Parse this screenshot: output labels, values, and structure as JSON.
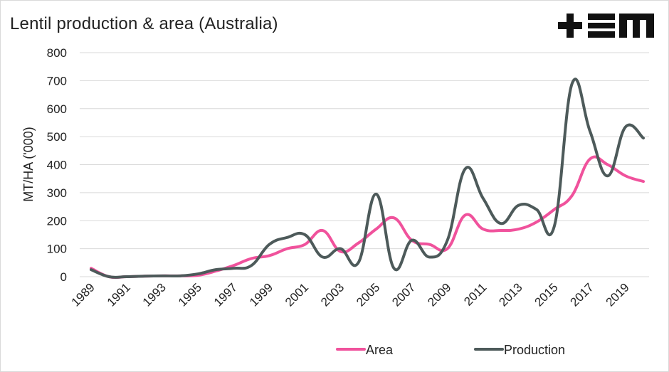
{
  "chart_data": {
    "type": "line",
    "title": "Lentil production & area (Australia)",
    "ylabel": "MT/HA ('000)",
    "xlabel": "",
    "ylim": [
      0,
      800
    ],
    "yticks": [
      "0",
      "100",
      "200",
      "300",
      "400",
      "500",
      "600",
      "700",
      "800"
    ],
    "x_tick_labels": [
      "1989",
      "1991",
      "1993",
      "1995",
      "1997",
      "1999",
      "2001",
      "2003",
      "2005",
      "2007",
      "2009",
      "2011",
      "2013",
      "2015",
      "2017",
      "2019"
    ],
    "x": [
      1989,
      1990,
      1991,
      1992,
      1993,
      1994,
      1995,
      1996,
      1997,
      1998,
      1999,
      2000,
      2001,
      2002,
      2003,
      2004,
      2005,
      2006,
      2007,
      2008,
      2009,
      2010,
      2011,
      2012,
      2013,
      2014,
      2015,
      2016,
      2017,
      2018,
      2019,
      2020
    ],
    "grid": "horizontal",
    "legend_position": "bottom",
    "series": [
      {
        "name": "Area",
        "color": "#f0529c",
        "values": [
          30,
          0,
          0,
          2,
          3,
          3,
          5,
          20,
          40,
          65,
          75,
          100,
          115,
          165,
          90,
          120,
          170,
          210,
          130,
          115,
          100,
          220,
          170,
          165,
          170,
          195,
          240,
          290,
          420,
          400,
          360,
          340
        ]
      },
      {
        "name": "Production",
        "color": "#4d5a5a",
        "values": [
          25,
          0,
          0,
          2,
          3,
          3,
          10,
          25,
          30,
          40,
          115,
          140,
          150,
          70,
          100,
          50,
          295,
          30,
          130,
          70,
          130,
          385,
          280,
          190,
          255,
          240,
          180,
          690,
          520,
          360,
          535,
          495
        ]
      }
    ]
  },
  "logo": {
    "text": "+EM"
  },
  "colors": {
    "area": "#f0529c",
    "production": "#4d5a5a",
    "grid": "#d9d9d9"
  }
}
